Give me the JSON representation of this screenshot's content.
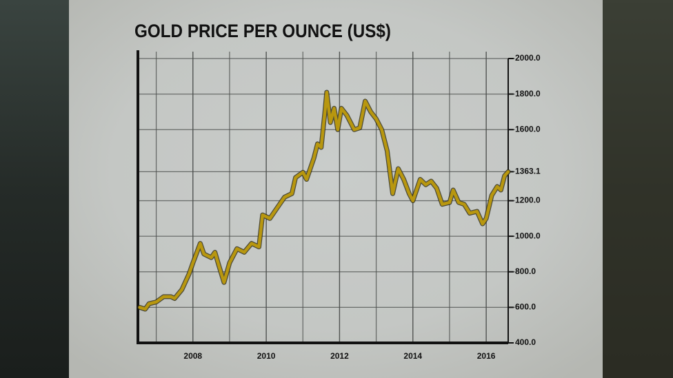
{
  "chart_data": {
    "type": "line",
    "title": "GOLD PRICE PER OUNCE (US$)",
    "x": [
      2006.55,
      2006.7,
      2006.8,
      2007.0,
      2007.2,
      2007.4,
      2007.5,
      2007.7,
      2007.9,
      2008.0,
      2008.2,
      2008.3,
      2008.5,
      2008.6,
      2008.7,
      2008.85,
      2009.0,
      2009.2,
      2009.4,
      2009.6,
      2009.8,
      2009.9,
      2010.1,
      2010.3,
      2010.5,
      2010.7,
      2010.8,
      2011.0,
      2011.1,
      2011.3,
      2011.4,
      2011.5,
      2011.6,
      2011.65,
      2011.75,
      2011.85,
      2011.95,
      2012.05,
      2012.2,
      2012.4,
      2012.55,
      2012.7,
      2012.85,
      2013.0,
      2013.15,
      2013.3,
      2013.45,
      2013.6,
      2013.75,
      2013.9,
      2014.0,
      2014.2,
      2014.35,
      2014.5,
      2014.65,
      2014.8,
      2015.0,
      2015.1,
      2015.25,
      2015.4,
      2015.55,
      2015.75,
      2015.9,
      2016.0,
      2016.15,
      2016.3,
      2016.4,
      2016.5,
      2016.6
    ],
    "series": [
      {
        "color": "#b8970f",
        "values": [
          600,
          590,
          620,
          630,
          660,
          660,
          650,
          700,
          790,
          850,
          960,
          900,
          880,
          910,
          840,
          740,
          850,
          930,
          910,
          960,
          940,
          1120,
          1100,
          1160,
          1220,
          1240,
          1330,
          1360,
          1320,
          1440,
          1520,
          1500,
          1700,
          1810,
          1640,
          1720,
          1600,
          1720,
          1680,
          1600,
          1610,
          1760,
          1700,
          1660,
          1600,
          1480,
          1240,
          1380,
          1320,
          1240,
          1200,
          1320,
          1290,
          1310,
          1270,
          1180,
          1190,
          1260,
          1190,
          1180,
          1130,
          1140,
          1070,
          1100,
          1230,
          1280,
          1260,
          1340,
          1363.1
        ]
      }
    ],
    "xlim": [
      2006.5,
      2016.6
    ],
    "xticks": [
      2008,
      2010,
      2012,
      2014,
      2016
    ],
    "ylim": [
      400,
      2000
    ],
    "yticks": [
      {
        "value": 400,
        "label": "400.0"
      },
      {
        "value": 600,
        "label": "600.0"
      },
      {
        "value": 800,
        "label": "800.0"
      },
      {
        "value": 1000,
        "label": "1000.0"
      },
      {
        "value": 1200,
        "label": "1200.0"
      },
      {
        "value": 1363.1,
        "label": "1363.1"
      },
      {
        "value": 1600,
        "label": "1600.0"
      },
      {
        "value": 1800,
        "label": "1800.0"
      },
      {
        "value": 2000,
        "label": "2000.0"
      }
    ],
    "grid": true
  }
}
